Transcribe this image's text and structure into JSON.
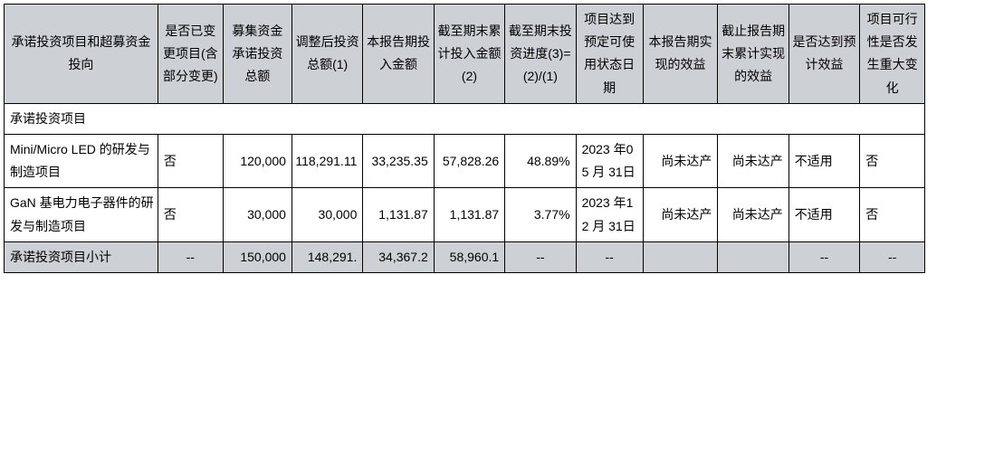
{
  "table": {
    "headers": [
      "承诺投资项目和超募资金投向",
      "是否已变更项目(含部分变更)",
      "募集资金承诺投资总额",
      "调整后投资总额(1)",
      "本报告期投入金额",
      "截至期末累计投入金额(2)",
      "截至期末投资进度(3)=(2)/(1)",
      "项目达到预定可使用状态日期",
      "本报告期实现的效益",
      "截止报告期末累计实现的效益",
      "是否达到预计效益",
      "项目可行性是否发生重大变化"
    ],
    "section_label": "承诺投资项目",
    "rows": [
      {
        "name": "Mini/Micro LED 的研发与制造项目",
        "changed": "否",
        "committed": "120,000",
        "adjusted": "118,291.11",
        "period_input": "33,235.35",
        "cumulative": "57,828.26",
        "progress": "48.89%",
        "ready_date": "2023 年05 月 31日",
        "period_benefit": "尚未达产",
        "cumulative_benefit": "尚未达产",
        "expected": "不适用",
        "feasibility_change": "否"
      },
      {
        "name": "GaN 基电力电子器件的研发与制造项目",
        "changed": "否",
        "committed": "30,000",
        "adjusted": "30,000",
        "period_input": "1,131.87",
        "cumulative": "1,131.87",
        "progress": "3.77%",
        "ready_date": "2023 年12 月 31日",
        "period_benefit": "尚未达产",
        "cumulative_benefit": "尚未达产",
        "expected": "不适用",
        "feasibility_change": "否"
      }
    ],
    "subtotal": {
      "label": "承诺投资项目小计",
      "changed": "--",
      "committed": "150,000",
      "adjusted": "148,291.",
      "period_input": "34,367.2",
      "cumulative": "58,960.1",
      "progress": "--",
      "ready_date": "--",
      "period_benefit": "",
      "cumulative_benefit": "",
      "expected": "--",
      "feasibility_change": "--"
    }
  },
  "style": {
    "header_bg": "#cdd0d5",
    "border_color": "#000000",
    "font_size": 14,
    "cell_bg": "#ffffff"
  }
}
